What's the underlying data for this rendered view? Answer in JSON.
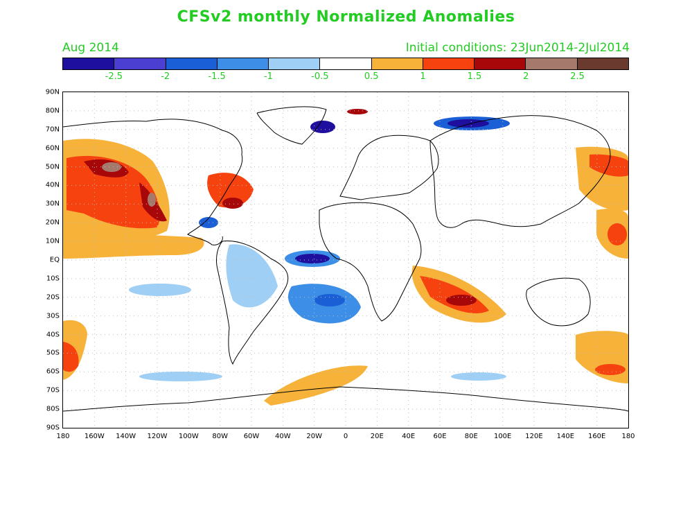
{
  "title": "CFSv2 monthly Normalized Anomalies",
  "valid_month": "Aug 2014",
  "initial_conditions": "Initial conditions: 23Jun2014-2Jul2014",
  "colors": {
    "title_green": "#22cc22",
    "bins": [
      "#1f0f9e",
      "#4a3fd1",
      "#1a5fd6",
      "#3c8ee6",
      "#9fcff5",
      "#ffffff",
      "#f7b23a",
      "#f5420f",
      "#a8070a",
      "#a57a6d",
      "#6a3a2e"
    ]
  },
  "colorbar": {
    "labels": [
      "-2.5",
      "-2",
      "-1.5",
      "-1",
      "-0.5",
      "0.5",
      "1",
      "1.5",
      "2",
      "2.5"
    ]
  },
  "axes": {
    "lat_labels": [
      "90N",
      "80N",
      "70N",
      "60N",
      "50N",
      "40N",
      "30N",
      "20N",
      "10N",
      "EQ",
      "10S",
      "20S",
      "30S",
      "40S",
      "50S",
      "60S",
      "70S",
      "80S",
      "90S"
    ],
    "lon_labels": [
      "180",
      "160W",
      "140W",
      "120W",
      "100W",
      "80W",
      "60W",
      "40W",
      "20W",
      "0",
      "20E",
      "40E",
      "60E",
      "80E",
      "100E",
      "120E",
      "140E",
      "160E",
      "180"
    ]
  }
}
